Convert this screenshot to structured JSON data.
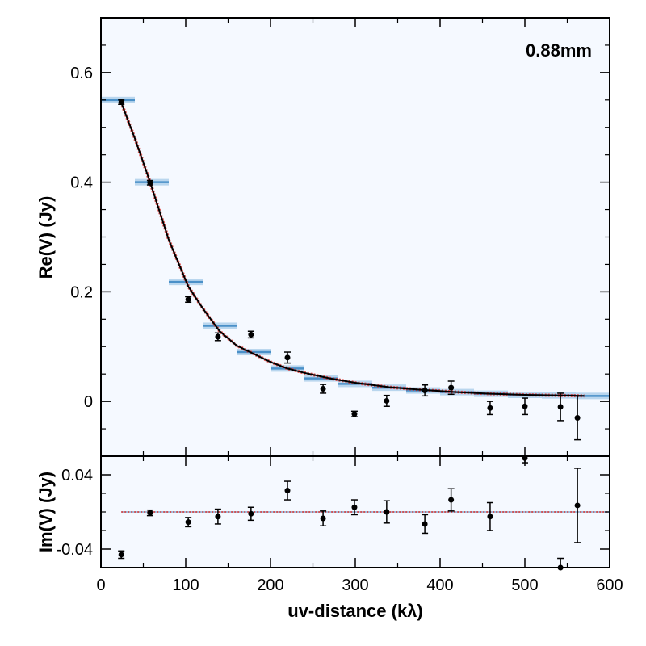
{
  "chart_data": [
    {
      "type": "scatter",
      "panel": "top",
      "annotation": "0.88mm",
      "ylabel": "Re(V) (Jy)",
      "xlim": [
        0,
        600
      ],
      "ylim": [
        -0.1,
        0.7
      ],
      "yticks": [
        0,
        0.2,
        0.4,
        0.6
      ],
      "ytick_labels": [
        "0",
        "0.2",
        "0.4",
        "0.6"
      ],
      "observed": [
        {
          "x": 24,
          "y": 0.546,
          "err": 0.004
        },
        {
          "x": 58,
          "y": 0.399,
          "err": 0.004
        },
        {
          "x": 103,
          "y": 0.186,
          "err": 0.005
        },
        {
          "x": 138,
          "y": 0.118,
          "err": 0.007
        },
        {
          "x": 177,
          "y": 0.122,
          "err": 0.006
        },
        {
          "x": 220,
          "y": 0.08,
          "err": 0.01
        },
        {
          "x": 262,
          "y": 0.023,
          "err": 0.008
        },
        {
          "x": 299,
          "y": -0.023,
          "err": 0.005
        },
        {
          "x": 337,
          "y": 0.001,
          "err": 0.01
        },
        {
          "x": 382,
          "y": 0.02,
          "err": 0.01
        },
        {
          "x": 413,
          "y": 0.025,
          "err": 0.012
        },
        {
          "x": 459,
          "y": -0.012,
          "err": 0.012
        },
        {
          "x": 500,
          "y": -0.009,
          "err": 0.015
        },
        {
          "x": 542,
          "y": -0.01,
          "err": 0.025
        },
        {
          "x": 562,
          "y": -0.03,
          "err": 0.04
        }
      ],
      "model_bins": [
        {
          "x0": 0,
          "x1": 40,
          "y": 0.55
        },
        {
          "x0": 40,
          "x1": 80,
          "y": 0.4
        },
        {
          "x0": 80,
          "x1": 120,
          "y": 0.218
        },
        {
          "x0": 120,
          "x1": 160,
          "y": 0.138
        },
        {
          "x0": 160,
          "x1": 200,
          "y": 0.09
        },
        {
          "x0": 200,
          "x1": 240,
          "y": 0.06
        },
        {
          "x0": 240,
          "x1": 280,
          "y": 0.042
        },
        {
          "x0": 280,
          "x1": 320,
          "y": 0.032
        },
        {
          "x0": 320,
          "x1": 360,
          "y": 0.025
        },
        {
          "x0": 360,
          "x1": 400,
          "y": 0.02
        },
        {
          "x0": 400,
          "x1": 440,
          "y": 0.017
        },
        {
          "x0": 440,
          "x1": 480,
          "y": 0.014
        },
        {
          "x0": 480,
          "x1": 520,
          "y": 0.012
        },
        {
          "x0": 520,
          "x1": 560,
          "y": 0.011
        },
        {
          "x0": 560,
          "x1": 600,
          "y": 0.01
        }
      ],
      "model_curve": {
        "x": [
          24,
          40,
          58,
          80,
          103,
          120,
          140,
          160,
          180,
          200,
          220,
          240,
          270,
          300,
          340,
          380,
          420,
          460,
          500,
          540,
          570
        ],
        "y": [
          0.545,
          0.48,
          0.4,
          0.295,
          0.21,
          0.17,
          0.128,
          0.102,
          0.087,
          0.072,
          0.06,
          0.052,
          0.042,
          0.034,
          0.026,
          0.021,
          0.017,
          0.014,
          0.012,
          0.011,
          0.01
        ]
      }
    },
    {
      "type": "scatter",
      "panel": "bottom",
      "ylabel": "Im(V) (Jy)",
      "xlabel": "uv-distance (kλ)",
      "xlim": [
        0,
        600
      ],
      "ylim": [
        -0.06,
        0.06
      ],
      "xticks": [
        0,
        100,
        200,
        300,
        400,
        500,
        600
      ],
      "xtick_labels": [
        "0",
        "100",
        "200",
        "300",
        "400",
        "500",
        "600"
      ],
      "yticks": [
        -0.04,
        0.04
      ],
      "ytick_labels": [
        "-0.04",
        "0.04"
      ],
      "observed": [
        {
          "x": 24,
          "y": -0.046,
          "err": 0.004
        },
        {
          "x": 58,
          "y": -0.001,
          "err": 0.003
        },
        {
          "x": 103,
          "y": -0.011,
          "err": 0.005
        },
        {
          "x": 138,
          "y": -0.005,
          "err": 0.008
        },
        {
          "x": 177,
          "y": -0.002,
          "err": 0.007
        },
        {
          "x": 220,
          "y": 0.023,
          "err": 0.01
        },
        {
          "x": 262,
          "y": -0.007,
          "err": 0.008
        },
        {
          "x": 299,
          "y": 0.005,
          "err": 0.008
        },
        {
          "x": 337,
          "y": 0.0,
          "err": 0.012
        },
        {
          "x": 382,
          "y": -0.013,
          "err": 0.01
        },
        {
          "x": 413,
          "y": 0.013,
          "err": 0.012
        },
        {
          "x": 459,
          "y": -0.005,
          "err": 0.015
        },
        {
          "x": 500,
          "y": 0.058,
          "err": 0.005
        },
        {
          "x": 542,
          "y": -0.06,
          "err": 0.01
        },
        {
          "x": 562,
          "y": 0.007,
          "err": 0.04
        }
      ],
      "model_line": {
        "y": 0.0
      }
    }
  ]
}
